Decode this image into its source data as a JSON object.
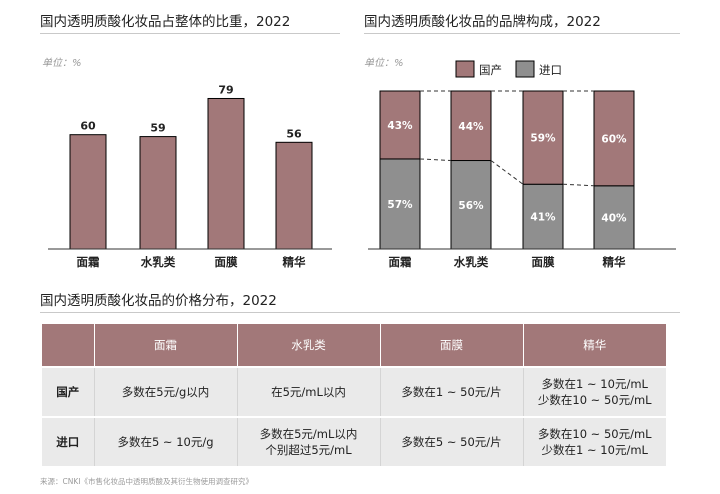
{
  "panel1": {
    "title": "国内透明质酸化妆品占整体的比重，2022",
    "unit": "单位：%"
  },
  "panel2": {
    "title": "国内透明质酸化妆品的品牌构成，2022",
    "unit": "单位：%"
  },
  "panel3": {
    "title": "国内透明质酸化妆品的价格分布，2022"
  },
  "colors": {
    "domestic": "#a27879",
    "import": "#8f8f8f",
    "header": "#a27879",
    "cell": "#eaeaea"
  },
  "chart_data": [
    {
      "type": "bar",
      "categories": [
        "面霜",
        "水乳类",
        "面膜",
        "精华"
      ],
      "values": [
        60,
        59,
        79,
        56
      ],
      "title": "国内透明质酸化妆品占整体的比重，2022",
      "unit": "单位：%",
      "ylim": [
        0,
        95
      ],
      "grid": false
    },
    {
      "type": "bar",
      "stacked": true,
      "percent": true,
      "categories": [
        "面霜",
        "水乳类",
        "面膜",
        "精华"
      ],
      "series": [
        {
          "name": "进口",
          "values": [
            57,
            56,
            41,
            40
          ]
        },
        {
          "name": "国产",
          "values": [
            43,
            44,
            59,
            60
          ]
        }
      ],
      "title": "国内透明质酸化妆品的品牌构成，2022",
      "unit": "单位：%",
      "legend": "top-left",
      "ylim": [
        0,
        100
      ],
      "grid": false
    }
  ],
  "price_table": {
    "columns": [
      "面霜",
      "水乳类",
      "面膜",
      "精华"
    ],
    "rows": [
      {
        "label": "国产",
        "cells": [
          [
            "多数在5元/g以内"
          ],
          [
            "在5元/mL以内"
          ],
          [
            "多数在1 ~ 50元/片"
          ],
          [
            "多数在1 ~ 10元/mL",
            "少数在10 ~ 50元/mL"
          ]
        ]
      },
      {
        "label": "进口",
        "cells": [
          [
            "多数在5 ~ 10元/g"
          ],
          [
            "多数在5元/mL以内",
            "个别超过5元/mL"
          ],
          [
            "多数在5 ~ 50元/片"
          ],
          [
            "多数在10 ~ 50元/mL",
            "少数在1 ~ 10元/mL"
          ]
        ]
      }
    ]
  },
  "source": "来源：CNKI《市售化妆品中透明质酸及其衍生物使用调查研究》"
}
